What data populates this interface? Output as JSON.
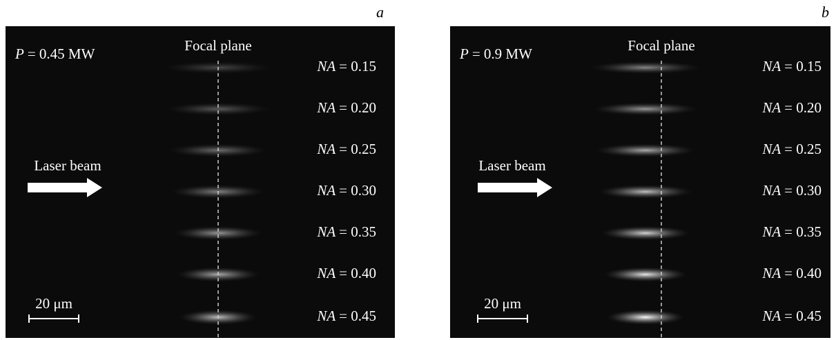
{
  "panels": [
    {
      "label": "a",
      "power": {
        "symbol": "P",
        "text": "= 0.45 MW"
      },
      "focal_plane": "Focal plane",
      "laser_beam": "Laser beam",
      "scale_bar": "20 μm",
      "rows": [
        {
          "symbol": "NA",
          "text": "= 0.15"
        },
        {
          "symbol": "NA",
          "text": "= 0.20"
        },
        {
          "symbol": "NA",
          "text": "= 0.25"
        },
        {
          "symbol": "NA",
          "text": "= 0.30"
        },
        {
          "symbol": "NA",
          "text": "= 0.35"
        },
        {
          "symbol": "NA",
          "text": "= 0.40"
        },
        {
          "symbol": "NA",
          "text": "= 0.45"
        }
      ]
    },
    {
      "label": "b",
      "power": {
        "symbol": "P",
        "text": "= 0.9 MW"
      },
      "focal_plane": "Focal plane",
      "laser_beam": "Laser beam",
      "scale_bar": "20 μm",
      "rows": [
        {
          "symbol": "NA",
          "text": "= 0.15"
        },
        {
          "symbol": "NA",
          "text": "= 0.20"
        },
        {
          "symbol": "NA",
          "text": "= 0.25"
        },
        {
          "symbol": "NA",
          "text": "= 0.30"
        },
        {
          "symbol": "NA",
          "text": "= 0.35"
        },
        {
          "symbol": "NA",
          "text": "= 0.40"
        },
        {
          "symbol": "NA",
          "text": "= 0.45"
        }
      ]
    }
  ]
}
